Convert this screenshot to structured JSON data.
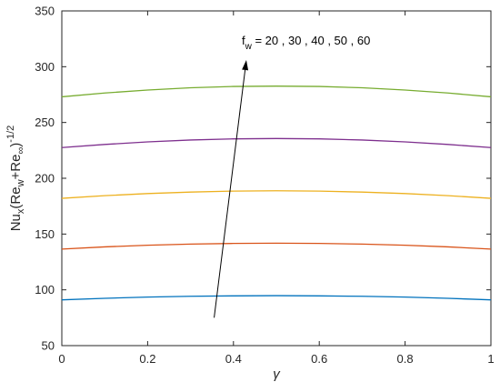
{
  "chart_data": {
    "type": "line",
    "xlabel": "γ",
    "ylabel": {
      "base": "Nu",
      "sub_x": "x",
      "open": "(Re",
      "sub_w": "w",
      "plus": "+Re",
      "sub_inf": "∞",
      "close": ")",
      "sup": "-1/2"
    },
    "xlim": [
      0,
      1
    ],
    "ylim": [
      50,
      350
    ],
    "xticks": [
      "0",
      "0.2",
      "0.4",
      "0.6",
      "0.8",
      "1"
    ],
    "yticks": [
      "50",
      "100",
      "150",
      "200",
      "250",
      "300",
      "350"
    ],
    "grid": false,
    "x": [
      0,
      0.1,
      0.2,
      0.3,
      0.4,
      0.5,
      0.6,
      0.7,
      0.8,
      0.9,
      1.0
    ],
    "series": [
      {
        "color": "#0072BD",
        "values": [
          91,
          92.4,
          93.5,
          94.2,
          94.6,
          94.8,
          94.6,
          94.2,
          93.5,
          92.4,
          91
        ]
      },
      {
        "color": "#D95319",
        "values": [
          136.5,
          138.5,
          140,
          141,
          141.6,
          141.8,
          141.6,
          141,
          140,
          138.5,
          136.5
        ]
      },
      {
        "color": "#EDB120",
        "values": [
          182,
          184.4,
          186.3,
          187.6,
          188.5,
          188.8,
          188.5,
          187.6,
          186.3,
          184.4,
          182
        ]
      },
      {
        "color": "#7E2F8E",
        "values": [
          227.5,
          230.3,
          232.6,
          234.3,
          235.3,
          235.6,
          235.3,
          234.3,
          232.6,
          230.3,
          227.5
        ]
      },
      {
        "color": "#77AC30",
        "values": [
          273,
          276.4,
          279.1,
          281.1,
          282.3,
          282.6,
          282.3,
          281.1,
          279.1,
          276.4,
          273
        ]
      }
    ],
    "annotation": {
      "base": "f",
      "sub": "w",
      "text": " = 20 , 30 , 40 , 50 , 60",
      "arrow_from": [
        0.355,
        75
      ],
      "arrow_to": [
        0.43,
        306
      ]
    }
  }
}
